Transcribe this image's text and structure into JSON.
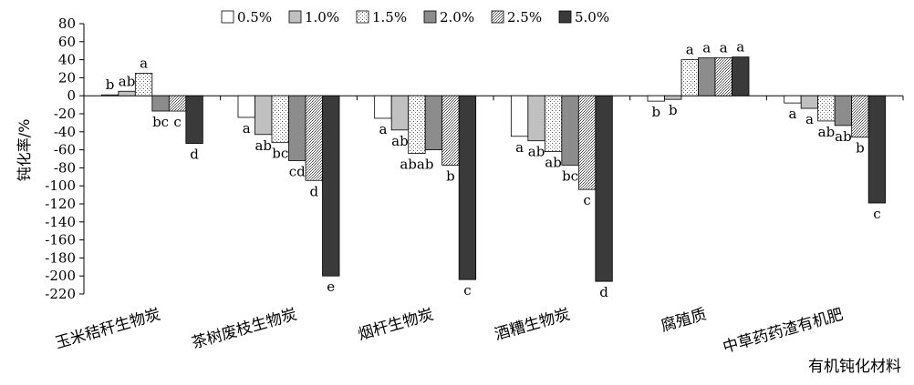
{
  "chart_data": {
    "type": "bar",
    "title": "",
    "ylabel": "钝化率/%",
    "xlabel": "有机钝化材料",
    "ylim": [
      -220,
      80
    ],
    "yticks": [
      80,
      60,
      40,
      20,
      0,
      -20,
      -40,
      -60,
      -80,
      -100,
      -120,
      -140,
      -160,
      -180,
      -200,
      -220
    ],
    "ytick_labels": [
      "80",
      "60",
      "40",
      "20",
      "0",
      "-20",
      "-40",
      "-60",
      "-80",
      "-100",
      "-120",
      "-140",
      "-160",
      "-180",
      "-200",
      "-220"
    ],
    "legend_position": "top",
    "grid": false,
    "categories": [
      "玉米秸秆生物炭",
      "茶树废枝生物炭",
      "烟杆生物炭",
      "酒糟生物炭",
      "腐殖质",
      "中草药药渣有机肥"
    ],
    "series": [
      {
        "name": "0.5%",
        "color": "#ffffff",
        "pattern": "none",
        "values": [
          1,
          -24,
          -25,
          -45,
          -6,
          -8
        ],
        "letters": [
          "b",
          "a",
          "a",
          "a",
          "b",
          "a"
        ]
      },
      {
        "name": "1.0%",
        "color": "#c0c0c0",
        "pattern": "none",
        "values": [
          5,
          -43,
          -38,
          -50,
          -4,
          -14
        ],
        "letters": [
          "ab",
          "ab",
          "ab",
          "ab",
          "b",
          "a"
        ]
      },
      {
        "name": "1.5%",
        "color": "#ffffff",
        "pattern": "dots",
        "values": [
          25,
          -52,
          -64,
          -62,
          40,
          -28
        ],
        "letters": [
          "a",
          "bc",
          "abab",
          "ab",
          "a",
          "ab"
        ]
      },
      {
        "name": "2.0%",
        "color": "#8c8c8c",
        "pattern": "none",
        "values": [
          -17,
          -72,
          -60,
          -77,
          42,
          -33
        ],
        "letters": [
          "bc",
          "cd",
          "",
          "bc",
          "a",
          "ab"
        ]
      },
      {
        "name": "2.5%",
        "color": "#ffffff",
        "pattern": "dense",
        "values": [
          -17,
          -94,
          -77,
          -104,
          42,
          -46
        ],
        "letters": [
          "c",
          "d",
          "b",
          "c",
          "a",
          "b"
        ]
      },
      {
        "name": "5.0%",
        "color": "#3a3a3a",
        "pattern": "none",
        "values": [
          -53,
          -200,
          -204,
          -206,
          43,
          -119
        ],
        "letters": [
          "d",
          "e",
          "c",
          "d",
          "a",
          "c"
        ]
      }
    ]
  }
}
